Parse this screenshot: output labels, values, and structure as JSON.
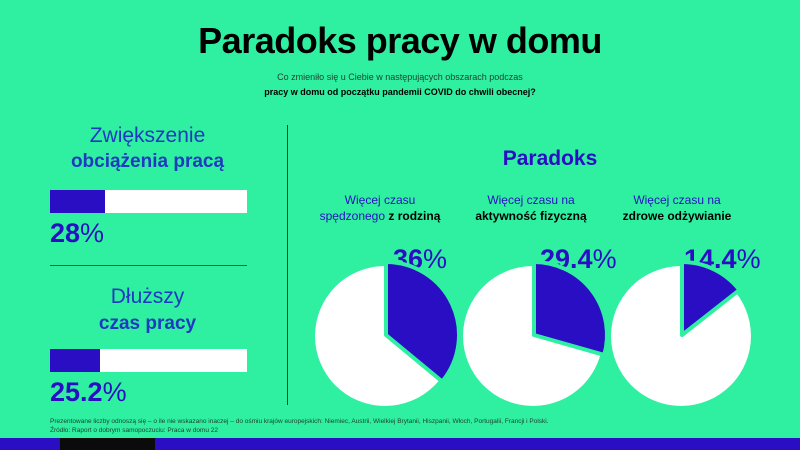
{
  "title": "Paradoks pracy w domu",
  "subtitle_line1": "Co zmieniło się u Ciebie w następujących obszarach podczas",
  "subtitle_line2": "pracy w domu od początku pandemii COVID do chwili obecnej?",
  "colors": {
    "background": "#2EF0A0",
    "accent": "#2a0ec4",
    "white": "#ffffff"
  },
  "left": [
    {
      "label_light": "Zwiększenie",
      "label_bold": "obciążenia pracą",
      "value_text": "28",
      "unit": "%",
      "fraction": 0.28
    },
    {
      "label_light": "Dłuższy",
      "label_bold": "czas pracy",
      "value_text": "25.2",
      "unit": "%",
      "fraction": 0.252
    }
  ],
  "paradoks": {
    "heading": "Paradoks",
    "items": [
      {
        "label_pre": "Więcej czasu",
        "label_mid": "spędzonego",
        "label_bold": "z rodziną",
        "value_text": "36",
        "unit": "%",
        "fraction": 0.36
      },
      {
        "label_pre": "Więcej czasu na",
        "label_mid": "",
        "label_bold": "aktywność fizyczną",
        "value_text": "29.4",
        "unit": "%",
        "fraction": 0.294
      },
      {
        "label_pre": "Więcej czasu na",
        "label_mid": "",
        "label_bold": "zdrowe odżywianie",
        "value_text": "14.4",
        "unit": "%",
        "fraction": 0.144
      }
    ]
  },
  "chart_data": [
    {
      "type": "bar",
      "categories": [
        "Zwiększenie obciążenia pracą",
        "Dłuższy czas pracy"
      ],
      "values": [
        28,
        25.2
      ],
      "ylim": [
        0,
        100
      ]
    },
    {
      "type": "pie",
      "categories": [
        "Więcej czasu spędzonego z rodziną",
        "Więcej czasu na aktywność fizyczną",
        "Więcej czasu na zdrowe odżywianie"
      ],
      "values": [
        36,
        29.4,
        14.4
      ]
    }
  ],
  "footer_line1": "Prezentowane liczby odnoszą się – o ile nie wskazano inaczej – do ośmiu krajów europejskich: Niemiec, Austrii, Wielkiej Brytanii, Hiszpanii, Włoch, Portugalii, Francji i Polski.",
  "footer_line2": "Źródło: Raport o dobrym samopoczuciu: Praca w domu 22"
}
